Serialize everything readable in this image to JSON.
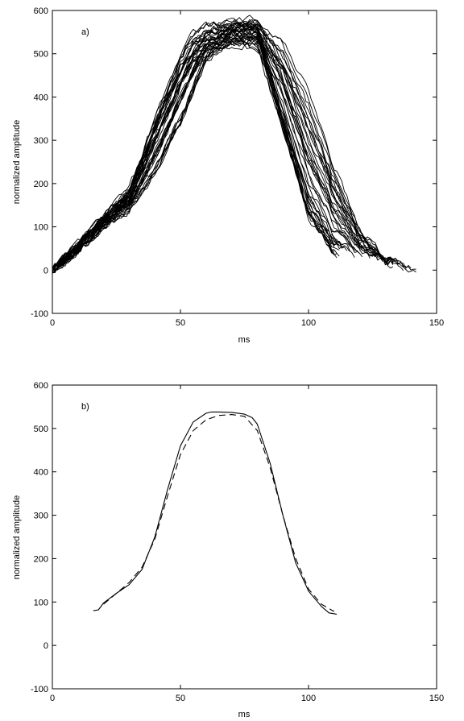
{
  "chart_data": [
    {
      "type": "line",
      "panel_label": "a)",
      "xlabel": "ms",
      "ylabel": "normalized amplitude",
      "xlim": [
        0,
        150
      ],
      "ylim": [
        -100,
        600
      ],
      "xticks": [
        "0",
        "50",
        "100",
        "150"
      ],
      "yticks": [
        "-100",
        "0",
        "100",
        "200",
        "300",
        "400",
        "500",
        "600"
      ],
      "grid": false,
      "legend": "none",
      "line_color": "#000000",
      "line_style": "solid",
      "series_count": 40,
      "series_generator": "bell-shaped traces with baseline ~0 at 0 ms, shoulder ~100-150 at 15-30 ms, rise between 30-55 ms, plateau ~520-570 between 55-85 ms, fall between 80-115 ms, return to ~0 by 110-145 ms",
      "envelope_early": {
        "x": [
          0,
          10,
          20,
          30,
          40,
          50,
          55,
          60,
          70,
          80,
          90,
          100,
          110,
          120,
          130,
          140
        ],
        "y": [
          0,
          60,
          120,
          180,
          340,
          480,
          530,
          545,
          550,
          540,
          330,
          120,
          40,
          10,
          0,
          0
        ]
      },
      "envelope_late": {
        "x": [
          0,
          10,
          20,
          30,
          40,
          50,
          60,
          70,
          80,
          90,
          100,
          110,
          120,
          130,
          140,
          145
        ],
        "y": [
          0,
          40,
          100,
          140,
          220,
          340,
          500,
          560,
          575,
          540,
          420,
          250,
          100,
          30,
          5,
          0
        ]
      }
    },
    {
      "type": "line",
      "panel_label": "b)",
      "xlabel": "ms",
      "ylabel": "normalized amplitude",
      "xlim": [
        0,
        150
      ],
      "ylim": [
        -100,
        600
      ],
      "xticks": [
        "0",
        "50",
        "100",
        "150"
      ],
      "yticks": [
        "-100",
        "0",
        "100",
        "200",
        "300",
        "400",
        "500",
        "600"
      ],
      "grid": false,
      "legend": "none",
      "series": [
        {
          "style": "solid",
          "color": "#000000",
          "x": [
            16,
            18,
            20,
            25,
            30,
            35,
            40,
            45,
            50,
            55,
            60,
            62,
            65,
            70,
            75,
            78,
            80,
            85,
            90,
            95,
            100,
            105,
            108,
            111
          ],
          "y": [
            80,
            82,
            98,
            120,
            140,
            175,
            250,
            360,
            460,
            515,
            535,
            538,
            538,
            537,
            533,
            525,
            510,
            420,
            300,
            190,
            125,
            90,
            75,
            72
          ]
        },
        {
          "style": "dashed",
          "color": "#000000",
          "x": [
            20,
            25,
            30,
            35,
            40,
            45,
            50,
            55,
            60,
            65,
            70,
            75,
            80,
            85,
            90,
            95,
            100,
            105,
            110
          ],
          "y": [
            95,
            120,
            145,
            180,
            245,
            345,
            440,
            495,
            520,
            530,
            532,
            528,
            495,
            410,
            300,
            200,
            130,
            95,
            78
          ]
        }
      ]
    }
  ]
}
